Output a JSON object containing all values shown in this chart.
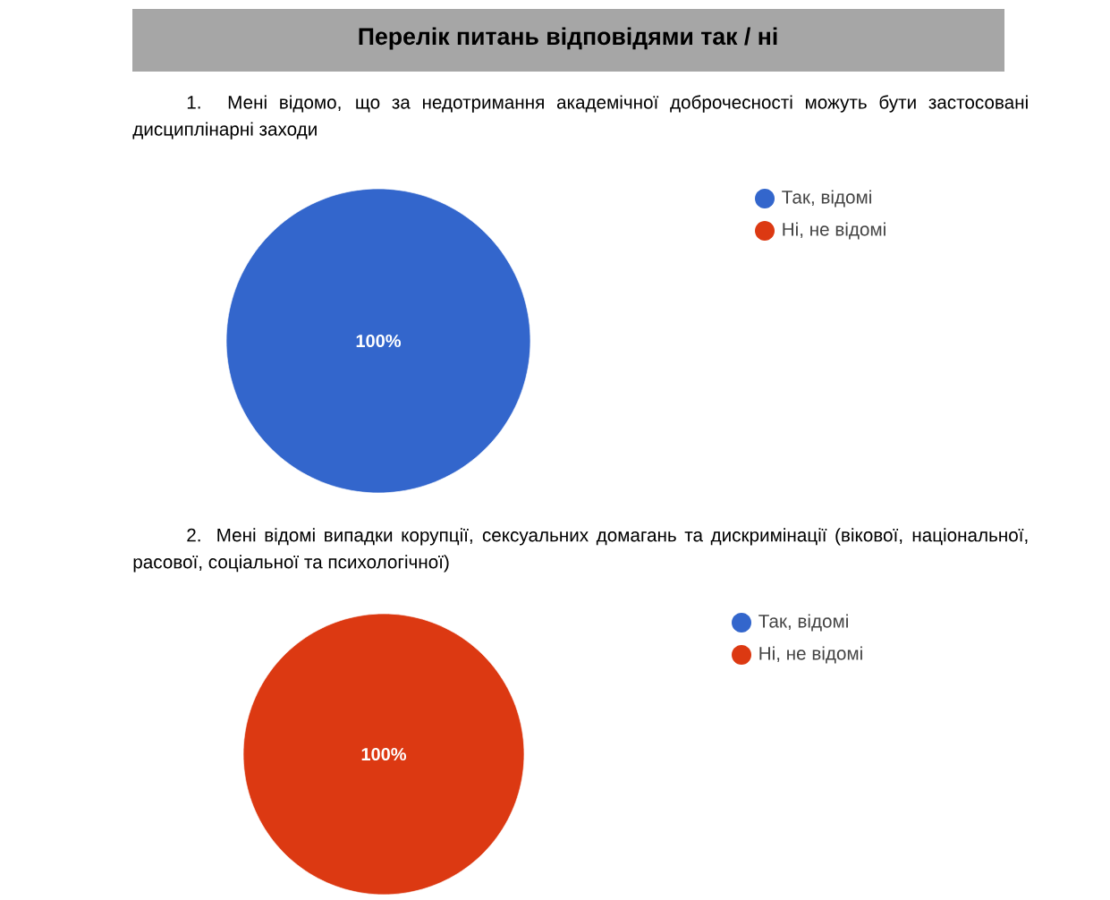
{
  "chart_data": [
    {
      "type": "pie",
      "title": "Перелік питань відповідями так / ні",
      "subtitle": "1. Мені відомо, що за недотримання академічної доброчесності можуть бути застосовані дисциплінарні заходи",
      "categories": [
        "Так, відомі",
        "Ні, не відомі"
      ],
      "values": [
        100,
        0
      ],
      "colors": [
        "#3366cc",
        "#dc3912"
      ],
      "value_labels": [
        "100%",
        null
      ],
      "legend": "right"
    },
    {
      "type": "pie",
      "subtitle": "2. Мені відомі випадки корупції, сексуальних домагань та дискримінації (вікової, національної, расової, соціальної та психологічної)",
      "categories": [
        "Так, відомі",
        "Ні, не відомі"
      ],
      "values": [
        0,
        100
      ],
      "colors": [
        "#3366cc",
        "#dc3912"
      ],
      "value_labels": [
        null,
        "100%"
      ],
      "legend": "right"
    }
  ]
}
